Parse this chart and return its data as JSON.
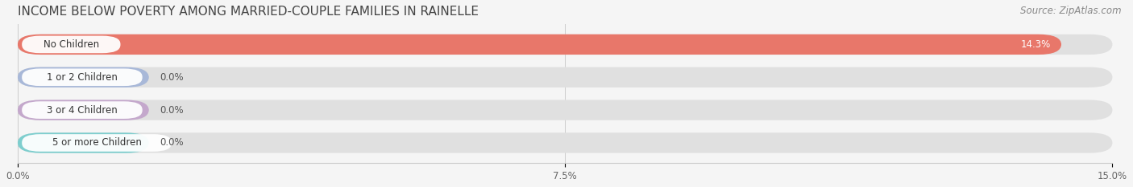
{
  "title": "INCOME BELOW POVERTY AMONG MARRIED-COUPLE FAMILIES IN RAINELLE",
  "source": "Source: ZipAtlas.com",
  "categories": [
    "No Children",
    "1 or 2 Children",
    "3 or 4 Children",
    "5 or more Children"
  ],
  "values": [
    14.3,
    0.0,
    0.0,
    0.0
  ],
  "bar_colors": [
    "#e8776a",
    "#a8b8d8",
    "#c4a8cc",
    "#7ecece"
  ],
  "background_color": "#f5f5f5",
  "bar_bg_color": "#e8e8e8",
  "xlim": [
    0,
    15.0
  ],
  "xticks": [
    0.0,
    7.5,
    15.0
  ],
  "xticklabels": [
    "0.0%",
    "7.5%",
    "15.0%"
  ],
  "title_fontsize": 11,
  "source_fontsize": 8.5,
  "label_fontsize": 8.5,
  "value_fontsize": 8.5,
  "zero_bar_width": 1.8
}
